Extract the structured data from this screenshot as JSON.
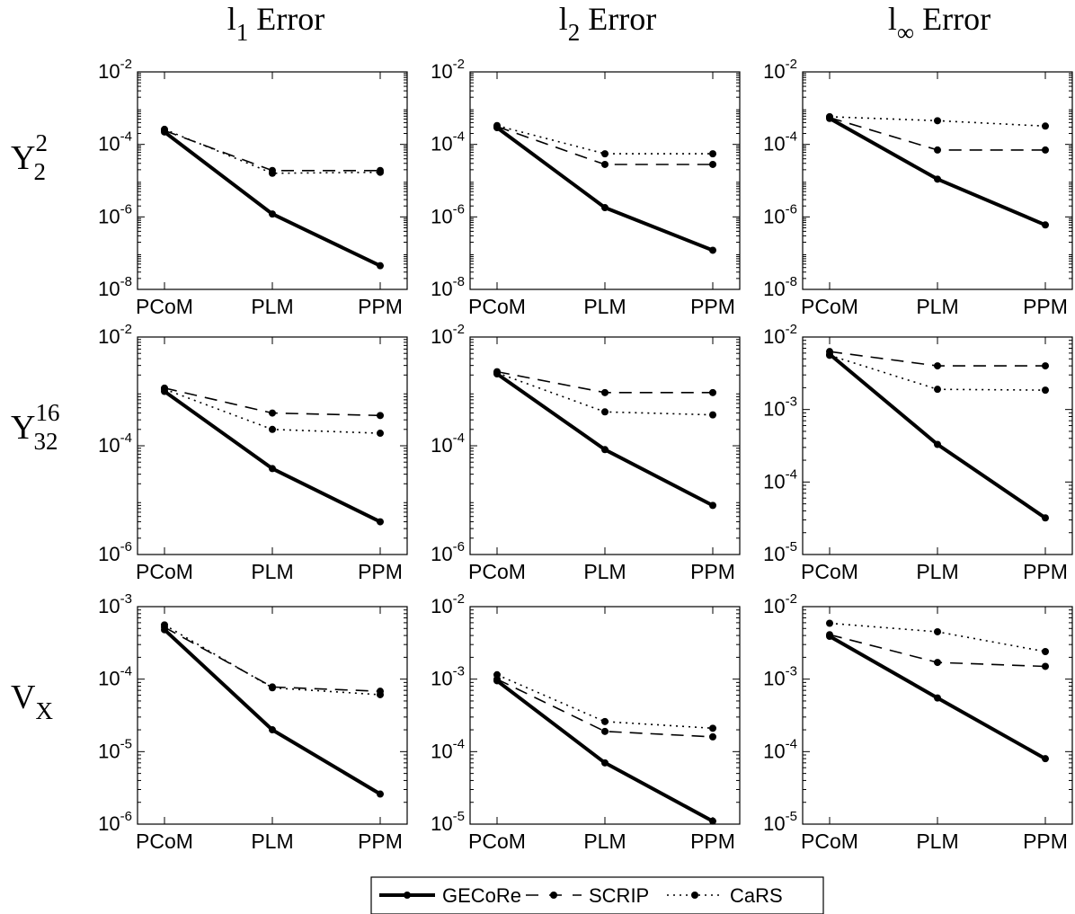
{
  "columns": [
    {
      "base": "l",
      "sub": "1",
      "rest": " Error"
    },
    {
      "base": "l",
      "sub": "2",
      "rest": " Error"
    },
    {
      "base": "l",
      "sub": "∞",
      "rest": " Error"
    }
  ],
  "rows": [
    {
      "base": "Y",
      "sup": "2",
      "sub": "2"
    },
    {
      "base": "Y",
      "sup": "16",
      "sub": "32"
    },
    {
      "base": "V",
      "sup": "",
      "sub": "X"
    }
  ],
  "legend": [
    {
      "label": "GECoRe",
      "style": "solid"
    },
    {
      "label": "SCRIP",
      "style": "dashed"
    },
    {
      "label": "CaRS",
      "style": "dotted"
    }
  ],
  "chart_data": [
    {
      "type": "line",
      "title": "",
      "xlabel": "",
      "ylabel": "",
      "y_scale": "log",
      "categories": [
        "PCoM",
        "PLM",
        "PPM"
      ],
      "ylim": [
        1e-08,
        0.01
      ],
      "y_ticks": [
        [
          "10",
          "-8"
        ],
        [
          "10",
          "-6"
        ],
        [
          "10",
          "-4"
        ],
        [
          "10",
          "-2"
        ]
      ],
      "series": [
        {
          "name": "GECoRe",
          "values": [
            0.00022,
            1.2e-06,
            4.5e-08
          ]
        },
        {
          "name": "SCRIP",
          "values": [
            0.00024,
            1.9e-05,
            1.9e-05
          ]
        },
        {
          "name": "CaRS",
          "values": [
            0.00026,
            1.6e-05,
            1.7e-05
          ]
        }
      ]
    },
    {
      "type": "line",
      "title": "",
      "xlabel": "",
      "ylabel": "",
      "y_scale": "log",
      "categories": [
        "PCoM",
        "PLM",
        "PPM"
      ],
      "ylim": [
        1e-08,
        0.01
      ],
      "y_ticks": [
        [
          "10",
          "-8"
        ],
        [
          "10",
          "-6"
        ],
        [
          "10",
          "-4"
        ],
        [
          "10",
          "-2"
        ]
      ],
      "series": [
        {
          "name": "GECoRe",
          "values": [
            0.00029,
            1.8e-06,
            1.2e-07
          ]
        },
        {
          "name": "SCRIP",
          "values": [
            0.00031,
            2.8e-05,
            2.8e-05
          ]
        },
        {
          "name": "CaRS",
          "values": [
            0.00033,
            5.5e-05,
            5.5e-05
          ]
        }
      ]
    },
    {
      "type": "line",
      "title": "",
      "xlabel": "",
      "ylabel": "",
      "y_scale": "log",
      "categories": [
        "PCoM",
        "PLM",
        "PPM"
      ],
      "ylim": [
        1e-08,
        0.01
      ],
      "y_ticks": [
        [
          "10",
          "-8"
        ],
        [
          "10",
          "-6"
        ],
        [
          "10",
          "-4"
        ],
        [
          "10",
          "-2"
        ]
      ],
      "series": [
        {
          "name": "GECoRe",
          "values": [
            0.00052,
            1.1e-05,
            6e-07
          ]
        },
        {
          "name": "SCRIP",
          "values": [
            0.00055,
            7e-05,
            7e-05
          ]
        },
        {
          "name": "CaRS",
          "values": [
            0.00058,
            0.00045,
            0.00032
          ]
        }
      ]
    },
    {
      "type": "line",
      "title": "",
      "xlabel": "",
      "ylabel": "",
      "y_scale": "log",
      "categories": [
        "PCoM",
        "PLM",
        "PPM"
      ],
      "ylim": [
        1e-06,
        0.01
      ],
      "y_ticks": [
        [
          "10",
          "-6"
        ],
        [
          "10",
          "-4"
        ],
        [
          "10",
          "-2"
        ]
      ],
      "series": [
        {
          "name": "GECoRe",
          "values": [
            0.001,
            3.8e-05,
            4e-06
          ]
        },
        {
          "name": "SCRIP",
          "values": [
            0.00115,
            0.0004,
            0.00036
          ]
        },
        {
          "name": "CaRS",
          "values": [
            0.0011,
            0.0002,
            0.00017
          ]
        }
      ]
    },
    {
      "type": "line",
      "title": "",
      "xlabel": "",
      "ylabel": "",
      "y_scale": "log",
      "categories": [
        "PCoM",
        "PLM",
        "PPM"
      ],
      "ylim": [
        1e-06,
        0.01
      ],
      "y_ticks": [
        [
          "10",
          "-6"
        ],
        [
          "10",
          "-4"
        ],
        [
          "10",
          "-2"
        ]
      ],
      "series": [
        {
          "name": "GECoRe",
          "values": [
            0.0021,
            8.5e-05,
            8e-06
          ]
        },
        {
          "name": "SCRIP",
          "values": [
            0.0023,
            0.00095,
            0.00095
          ]
        },
        {
          "name": "CaRS",
          "values": [
            0.0022,
            0.00042,
            0.00037
          ]
        }
      ]
    },
    {
      "type": "line",
      "title": "",
      "xlabel": "",
      "ylabel": "",
      "y_scale": "log",
      "categories": [
        "PCoM",
        "PLM",
        "PPM"
      ],
      "ylim": [
        1e-05,
        0.01
      ],
      "y_ticks": [
        [
          "10",
          "-5"
        ],
        [
          "10",
          "-4"
        ],
        [
          "10",
          "-3"
        ],
        [
          "10",
          "-2"
        ]
      ],
      "series": [
        {
          "name": "GECoRe",
          "values": [
            0.0058,
            0.00033,
            3.2e-05
          ]
        },
        {
          "name": "SCRIP",
          "values": [
            0.0063,
            0.004,
            0.004
          ]
        },
        {
          "name": "CaRS",
          "values": [
            0.0056,
            0.0019,
            0.00185
          ]
        }
      ]
    },
    {
      "type": "line",
      "title": "",
      "xlabel": "",
      "ylabel": "",
      "y_scale": "log",
      "categories": [
        "PCoM",
        "PLM",
        "PPM"
      ],
      "ylim": [
        1e-06,
        0.001
      ],
      "y_ticks": [
        [
          "10",
          "-6"
        ],
        [
          "10",
          "-5"
        ],
        [
          "10",
          "-4"
        ],
        [
          "10",
          "-3"
        ]
      ],
      "series": [
        {
          "name": "GECoRe",
          "values": [
            0.00048,
            2e-05,
            2.6e-06
          ]
        },
        {
          "name": "SCRIP",
          "values": [
            0.00052,
            7.8e-05,
            6.8e-05
          ]
        },
        {
          "name": "CaRS",
          "values": [
            0.00056,
            7.6e-05,
            6.1e-05
          ]
        }
      ]
    },
    {
      "type": "line",
      "title": "",
      "xlabel": "",
      "ylabel": "",
      "y_scale": "log",
      "categories": [
        "PCoM",
        "PLM",
        "PPM"
      ],
      "ylim": [
        1e-05,
        0.01
      ],
      "y_ticks": [
        [
          "10",
          "-5"
        ],
        [
          "10",
          "-4"
        ],
        [
          "10",
          "-3"
        ],
        [
          "10",
          "-2"
        ]
      ],
      "series": [
        {
          "name": "GECoRe",
          "values": [
            0.00095,
            7e-05,
            1.1e-05
          ]
        },
        {
          "name": "SCRIP",
          "values": [
            0.001,
            0.00019,
            0.00016
          ]
        },
        {
          "name": "CaRS",
          "values": [
            0.00115,
            0.00026,
            0.00021
          ]
        }
      ]
    },
    {
      "type": "line",
      "title": "",
      "xlabel": "",
      "ylabel": "",
      "y_scale": "log",
      "categories": [
        "PCoM",
        "PLM",
        "PPM"
      ],
      "ylim": [
        1e-05,
        0.01
      ],
      "y_ticks": [
        [
          "10",
          "-5"
        ],
        [
          "10",
          "-4"
        ],
        [
          "10",
          "-3"
        ],
        [
          "10",
          "-2"
        ]
      ],
      "series": [
        {
          "name": "GECoRe",
          "values": [
            0.0039,
            0.00055,
            8e-05
          ]
        },
        {
          "name": "SCRIP",
          "values": [
            0.0041,
            0.0017,
            0.0015
          ]
        },
        {
          "name": "CaRS",
          "values": [
            0.0059,
            0.0045,
            0.0024
          ]
        }
      ]
    }
  ]
}
